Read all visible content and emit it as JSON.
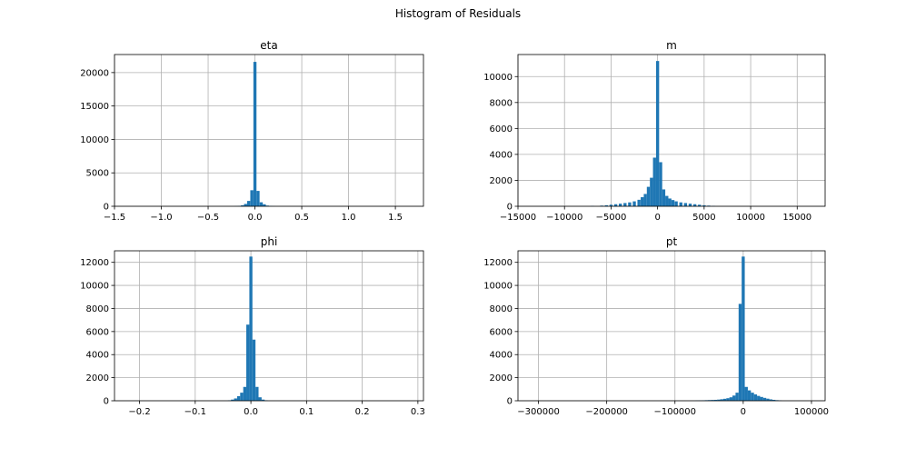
{
  "figure": {
    "title": "Histogram of Residuals"
  },
  "colors": {
    "bar": "#1f77b4",
    "grid": "#b0b0b0",
    "axis": "#000000"
  },
  "chart_data": [
    {
      "type": "bar",
      "title": "eta",
      "grid": true,
      "xlim": [
        -1.5,
        1.8
      ],
      "ylim": [
        0,
        22700
      ],
      "xticks": [
        -1.5,
        -1.0,
        -0.5,
        0.0,
        0.5,
        1.0,
        1.5
      ],
      "xtick_labels": [
        "−1.5",
        "−1.0",
        "−0.5",
        "0.0",
        "0.5",
        "1.0",
        "1.5"
      ],
      "yticks": [
        0,
        5000,
        10000,
        15000,
        20000
      ],
      "ytick_labels": [
        "0",
        "5000",
        "10000",
        "15000",
        "20000"
      ],
      "bin_width": 0.033,
      "bins": [
        {
          "x": -0.2,
          "y": 30
        },
        {
          "x": -0.167,
          "y": 60
        },
        {
          "x": -0.133,
          "y": 150
        },
        {
          "x": -0.1,
          "y": 350
        },
        {
          "x": -0.067,
          "y": 800
        },
        {
          "x": -0.033,
          "y": 2400
        },
        {
          "x": 0.0,
          "y": 21600
        },
        {
          "x": 0.033,
          "y": 2300
        },
        {
          "x": 0.067,
          "y": 600
        },
        {
          "x": 0.1,
          "y": 300
        },
        {
          "x": 0.133,
          "y": 100
        },
        {
          "x": 0.167,
          "y": 50
        },
        {
          "x": 0.2,
          "y": 20
        }
      ]
    },
    {
      "type": "bar",
      "title": "m",
      "grid": true,
      "xlim": [
        -15000,
        18000
      ],
      "ylim": [
        0,
        11700
      ],
      "xticks": [
        -15000,
        -10000,
        -5000,
        0,
        5000,
        10000,
        15000
      ],
      "xtick_labels": [
        "−15000",
        "−10000",
        "−5000",
        "0",
        "5000",
        "10000",
        "15000"
      ],
      "yticks": [
        0,
        2000,
        4000,
        6000,
        8000,
        10000
      ],
      "ytick_labels": [
        "0",
        "2000",
        "4000",
        "6000",
        "8000",
        "10000"
      ],
      "bin_width": 330,
      "bins": [
        {
          "x": -7000,
          "y": 30
        },
        {
          "x": -6000,
          "y": 50
        },
        {
          "x": -5500,
          "y": 80
        },
        {
          "x": -5000,
          "y": 120
        },
        {
          "x": -4500,
          "y": 160
        },
        {
          "x": -4000,
          "y": 200
        },
        {
          "x": -3500,
          "y": 250
        },
        {
          "x": -3000,
          "y": 300
        },
        {
          "x": -2500,
          "y": 380
        },
        {
          "x": -2000,
          "y": 500
        },
        {
          "x": -1650,
          "y": 700
        },
        {
          "x": -1320,
          "y": 950
        },
        {
          "x": -990,
          "y": 1500
        },
        {
          "x": -660,
          "y": 2200
        },
        {
          "x": -330,
          "y": 3750
        },
        {
          "x": 0,
          "y": 11200
        },
        {
          "x": 330,
          "y": 3400
        },
        {
          "x": 660,
          "y": 1300
        },
        {
          "x": 990,
          "y": 800
        },
        {
          "x": 1320,
          "y": 600
        },
        {
          "x": 1650,
          "y": 480
        },
        {
          "x": 2000,
          "y": 380
        },
        {
          "x": 2500,
          "y": 300
        },
        {
          "x": 3000,
          "y": 250
        },
        {
          "x": 3500,
          "y": 200
        },
        {
          "x": 4000,
          "y": 160
        },
        {
          "x": 4500,
          "y": 120
        },
        {
          "x": 5000,
          "y": 80
        },
        {
          "x": 5500,
          "y": 50
        },
        {
          "x": 6000,
          "y": 30
        }
      ]
    },
    {
      "type": "bar",
      "title": "phi",
      "grid": true,
      "xlim": [
        -0.245,
        0.31
      ],
      "ylim": [
        0,
        13000
      ],
      "xticks": [
        -0.2,
        -0.1,
        0.0,
        0.1,
        0.2,
        0.3
      ],
      "xtick_labels": [
        "−0.2",
        "−0.1",
        "0.0",
        "0.1",
        "0.2",
        "0.3"
      ],
      "yticks": [
        0,
        2000,
        4000,
        6000,
        8000,
        10000,
        12000
      ],
      "ytick_labels": [
        "0",
        "2000",
        "4000",
        "6000",
        "8000",
        "10000",
        "12000"
      ],
      "bin_width": 0.0055,
      "bins": [
        {
          "x": -0.0385,
          "y": 40
        },
        {
          "x": -0.033,
          "y": 100
        },
        {
          "x": -0.0275,
          "y": 200
        },
        {
          "x": -0.022,
          "y": 400
        },
        {
          "x": -0.0165,
          "y": 700
        },
        {
          "x": -0.011,
          "y": 1200
        },
        {
          "x": -0.0055,
          "y": 6600
        },
        {
          "x": 0.0,
          "y": 12500
        },
        {
          "x": 0.0055,
          "y": 5300
        },
        {
          "x": 0.011,
          "y": 1200
        },
        {
          "x": 0.0165,
          "y": 300
        },
        {
          "x": 0.022,
          "y": 100
        },
        {
          "x": 0.0275,
          "y": 40
        }
      ]
    },
    {
      "type": "bar",
      "title": "pt",
      "grid": true,
      "xlim": [
        -330000,
        120000
      ],
      "ylim": [
        0,
        13000
      ],
      "xticks": [
        -300000,
        -200000,
        -100000,
        0,
        100000
      ],
      "xtick_labels": [
        "−300000",
        "−200000",
        "−100000",
        "0",
        "100000"
      ],
      "yticks": [
        0,
        2000,
        4000,
        6000,
        8000,
        10000,
        12000
      ],
      "ytick_labels": [
        "0",
        "2000",
        "4000",
        "6000",
        "8000",
        "10000",
        "12000"
      ],
      "bin_width": 4500,
      "bins": [
        {
          "x": -67500,
          "y": 20
        },
        {
          "x": -63000,
          "y": 30
        },
        {
          "x": -58500,
          "y": 40
        },
        {
          "x": -54000,
          "y": 50
        },
        {
          "x": -49500,
          "y": 60
        },
        {
          "x": -45000,
          "y": 70
        },
        {
          "x": -40500,
          "y": 80
        },
        {
          "x": -36000,
          "y": 100
        },
        {
          "x": -31500,
          "y": 130
        },
        {
          "x": -27000,
          "y": 170
        },
        {
          "x": -22500,
          "y": 220
        },
        {
          "x": -18000,
          "y": 300
        },
        {
          "x": -13500,
          "y": 450
        },
        {
          "x": -9000,
          "y": 700
        },
        {
          "x": -4500,
          "y": 8400
        },
        {
          "x": 0,
          "y": 12500
        },
        {
          "x": 4500,
          "y": 1200
        },
        {
          "x": 9000,
          "y": 900
        },
        {
          "x": 13500,
          "y": 700
        },
        {
          "x": 18000,
          "y": 550
        },
        {
          "x": 22500,
          "y": 420
        },
        {
          "x": 27000,
          "y": 330
        },
        {
          "x": 31500,
          "y": 250
        },
        {
          "x": 36000,
          "y": 180
        },
        {
          "x": 40500,
          "y": 120
        },
        {
          "x": 45000,
          "y": 80
        },
        {
          "x": 49500,
          "y": 50
        },
        {
          "x": 54000,
          "y": 30
        }
      ]
    }
  ]
}
